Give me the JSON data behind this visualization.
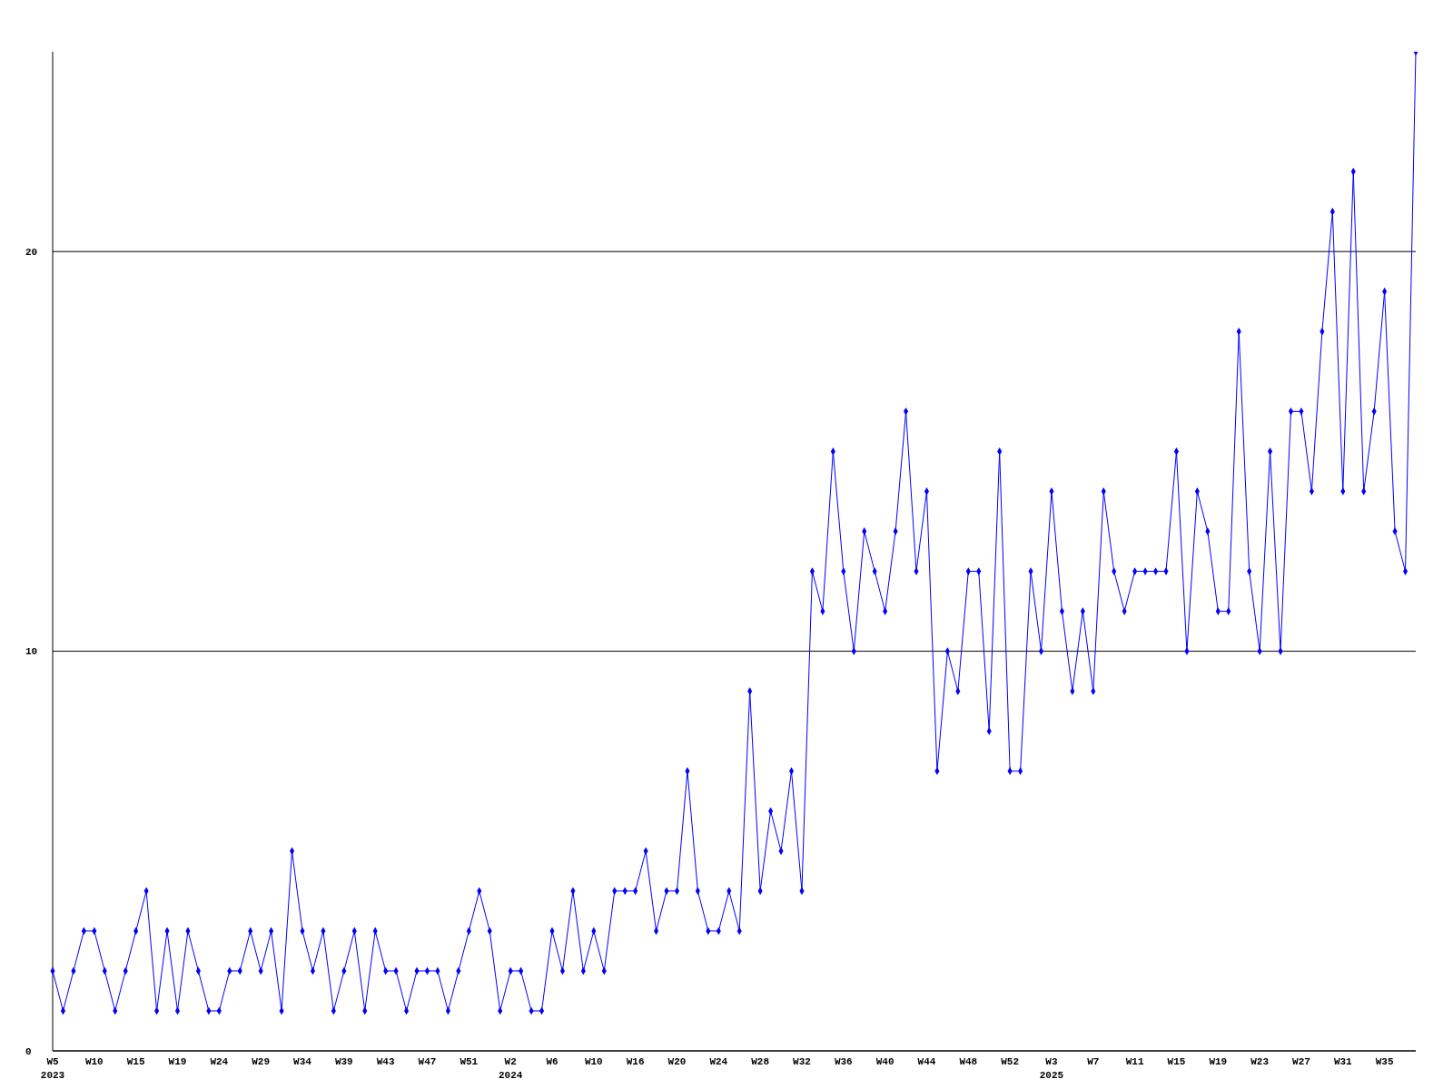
{
  "chart_data": {
    "type": "line",
    "categories": [
      "W5\n2023",
      null,
      null,
      null,
      "W10",
      null,
      null,
      null,
      "W15",
      null,
      null,
      null,
      "W19",
      null,
      null,
      null,
      "W24",
      null,
      null,
      null,
      "W29",
      null,
      null,
      null,
      "W34",
      null,
      null,
      null,
      "W39",
      null,
      null,
      null,
      "W43",
      null,
      null,
      null,
      "W47",
      null,
      null,
      null,
      "W51",
      null,
      null,
      null,
      "W2\n2024",
      null,
      null,
      null,
      "W6",
      null,
      null,
      null,
      "W10",
      null,
      null,
      null,
      "W16",
      null,
      null,
      null,
      "W20",
      null,
      null,
      null,
      "W24",
      null,
      null,
      null,
      "W28",
      null,
      null,
      null,
      "W32",
      null,
      null,
      null,
      "W36",
      null,
      null,
      null,
      "W40",
      null,
      null,
      null,
      "W44",
      null,
      null,
      null,
      "W48",
      null,
      null,
      null,
      "W52",
      null,
      null,
      null,
      "W3\n2025",
      null,
      null,
      null,
      "W7",
      null,
      null,
      null,
      "W11",
      null,
      null,
      null,
      "W15",
      null,
      null,
      null,
      "W19",
      null,
      null,
      null,
      "W23",
      null,
      null,
      null,
      "W27",
      null,
      null,
      null,
      "W31",
      null,
      null,
      null,
      "W35",
      null,
      null,
      null
    ],
    "series": [
      {
        "color": "#0000ff",
        "values": [
          2,
          1,
          2,
          3,
          3,
          2,
          1,
          2,
          3,
          4,
          1,
          3,
          1,
          3,
          2,
          1,
          1,
          2,
          2,
          3,
          2,
          3,
          1,
          5,
          3,
          2,
          3,
          1,
          2,
          3,
          1,
          3,
          2,
          2,
          1,
          2,
          2,
          2,
          1,
          2,
          3,
          4,
          3,
          1,
          2,
          2,
          1,
          1,
          3,
          2,
          4,
          2,
          3,
          2,
          4,
          4,
          4,
          5,
          3,
          4,
          4,
          7,
          4,
          3,
          3,
          4,
          3,
          9,
          4,
          6,
          5,
          7,
          4,
          12,
          11,
          15,
          12,
          10,
          13,
          12,
          11,
          13,
          16,
          12,
          14,
          7,
          10,
          9,
          12,
          12,
          8,
          15,
          7,
          7,
          12,
          10,
          14,
          11,
          9,
          11,
          9,
          14,
          12,
          11,
          12,
          12,
          12,
          12,
          15,
          10,
          14,
          13,
          11,
          11,
          18,
          12,
          10,
          15,
          10,
          16,
          16,
          14,
          18,
          21,
          14,
          22,
          14,
          16,
          19,
          13,
          12,
          25
        ]
      }
    ],
    "ylim": [
      0,
      25
    ],
    "yticks": [
      0,
      10,
      20
    ],
    "grid": "y",
    "marker": "diamond",
    "line_style": "solid"
  }
}
